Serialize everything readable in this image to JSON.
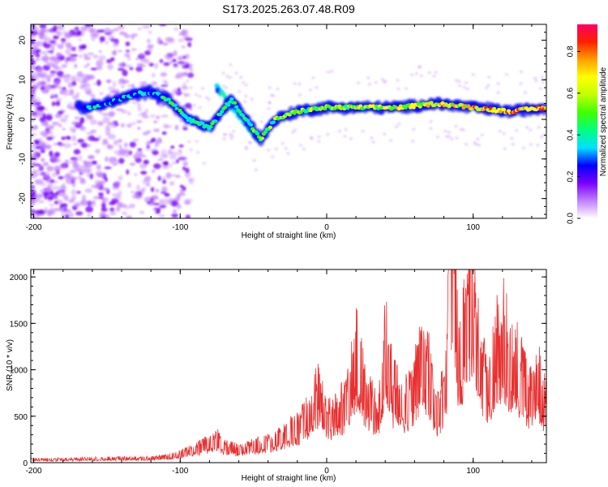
{
  "title": "S173.2025.263.07.48.R09",
  "chart_data": [
    {
      "type": "heatmap",
      "xlabel": "Height of straight line (km)",
      "ylabel": "Frequency (Hz)",
      "xlim": [
        -202,
        150
      ],
      "ylim": [
        -25,
        24
      ],
      "xticks": [
        -200,
        -100,
        0,
        100
      ],
      "xtick_labels": [
        "-200",
        "-100",
        "0",
        "100"
      ],
      "yticks": [
        -20,
        -10,
        0,
        10,
        20
      ],
      "ytick_labels": [
        "-20",
        "-10",
        "0",
        "10",
        "20"
      ],
      "colorbar": {
        "label": "Normalized spectral amplitude",
        "range": [
          0,
          0.93
        ],
        "ticks": [
          0,
          0.2,
          0.4,
          0.6,
          0.8
        ],
        "tick_labels": [
          "0.0",
          "0.2",
          "0.4",
          "0.6",
          "0.8"
        ],
        "colors": [
          "#ffffff",
          "#c080ff",
          "#7a00ff",
          "#0000ff",
          "#00e0ff",
          "#00ff80",
          "#40ff00",
          "#c0ff00",
          "#ffff00",
          "#ffa000",
          "#ff2000",
          "#ff0060"
        ]
      },
      "ridge": [
        {
          "x": -165,
          "f": 3
        },
        {
          "x": -150,
          "f": 4
        },
        {
          "x": -135,
          "f": 6
        },
        {
          "x": -120,
          "f": 7
        },
        {
          "x": -108,
          "f": 5
        },
        {
          "x": -95,
          "f": 0
        },
        {
          "x": -80,
          "f": -2
        },
        {
          "x": -65,
          "f": 5
        },
        {
          "x": -55,
          "f": 0
        },
        {
          "x": -45,
          "f": -5
        },
        {
          "x": -35,
          "f": 0
        },
        {
          "x": -20,
          "f": 2
        },
        {
          "x": 0,
          "f": 3
        },
        {
          "x": 25,
          "f": 3
        },
        {
          "x": 50,
          "f": 3
        },
        {
          "x": 75,
          "f": 4
        },
        {
          "x": 100,
          "f": 3
        },
        {
          "x": 125,
          "f": 2
        },
        {
          "x": 150,
          "f": 3
        }
      ]
    },
    {
      "type": "line",
      "xlabel": "Height of straight line (km)",
      "ylabel": "SNR (10 * v/v)",
      "xlim": [
        -202,
        150
      ],
      "ylim": [
        0,
        2080
      ],
      "xticks": [
        -200,
        -100,
        0,
        100
      ],
      "xtick_labels": [
        "-200",
        "-100",
        "0",
        "100"
      ],
      "yticks": [
        0,
        500,
        1000,
        1500,
        2000
      ],
      "ytick_labels": [
        "0",
        "500",
        "1000",
        "1500",
        "2000"
      ],
      "color": "#e83030",
      "series": [
        {
          "name": "SNR",
          "x": [
            -202,
            -180,
            -160,
            -140,
            -120,
            -110,
            -100,
            -90,
            -80,
            -75,
            -70,
            -60,
            -50,
            -40,
            -30,
            -20,
            -10,
            -5,
            0,
            10,
            15,
            20,
            25,
            30,
            35,
            40,
            45,
            50,
            55,
            60,
            65,
            70,
            75,
            80,
            82,
            85,
            88,
            90,
            95,
            98,
            100,
            105,
            110,
            115,
            120,
            125,
            130,
            135,
            140,
            145,
            150
          ],
          "y": [
            30,
            30,
            35,
            40,
            40,
            50,
            80,
            120,
            180,
            220,
            150,
            120,
            150,
            180,
            250,
            330,
            480,
            700,
            400,
            500,
            600,
            1000,
            700,
            550,
            400,
            1150,
            650,
            600,
            550,
            700,
            1000,
            800,
            500,
            600,
            900,
            2060,
            1400,
            1000,
            1250,
            1600,
            1350,
            900,
            700,
            1000,
            1200,
            950,
            900,
            700,
            600,
            750,
            500
          ]
        }
      ]
    }
  ]
}
